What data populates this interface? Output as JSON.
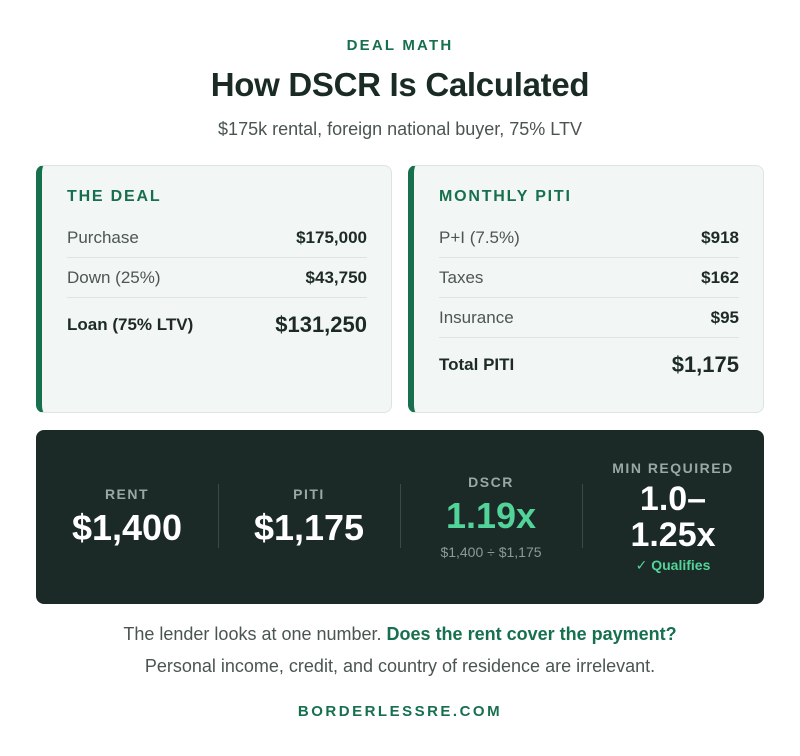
{
  "header": {
    "eyebrow": "DEAL MATH",
    "title": "How DSCR Is Calculated",
    "subtitle": "$175k rental, foreign national buyer, 75% LTV"
  },
  "deal_card": {
    "title": "THE DEAL",
    "rows": [
      {
        "label": "Purchase",
        "value": "$175,000"
      },
      {
        "label": "Down (25%)",
        "value": "$43,750"
      }
    ],
    "total": {
      "label": "Loan (75% LTV)",
      "value": "$131,250"
    }
  },
  "piti_card": {
    "title": "MONTHLY PITI",
    "rows": [
      {
        "label": "P+I (7.5%)",
        "value": "$918"
      },
      {
        "label": "Taxes",
        "value": "$162"
      },
      {
        "label": "Insurance",
        "value": "$95"
      }
    ],
    "total": {
      "label": "Total PITI",
      "value": "$1,175"
    }
  },
  "summary": {
    "rent": {
      "label": "RENT",
      "value": "$1,400"
    },
    "piti": {
      "label": "PITI",
      "value": "$1,175"
    },
    "dscr": {
      "label": "DSCR",
      "value": "1.19x",
      "formula": "$1,400 ÷ $1,175"
    },
    "min": {
      "label": "MIN REQUIRED",
      "value_line1": "1.0–",
      "value_line2": "1.25x",
      "status": "✓ Qualifies"
    }
  },
  "footer": {
    "line1_plain": "The lender looks at one number. ",
    "line1_emphasis": "Does the rent cover the payment?",
    "line2": "Personal income, credit, and country of residence are irrelevant.",
    "brand": "BORDERLESSRE.COM"
  },
  "colors": {
    "accent_green": "#17704d",
    "bright_green": "#52d39a",
    "panel_dark": "#1b2a26",
    "card_bg": "#f2f6f4"
  }
}
